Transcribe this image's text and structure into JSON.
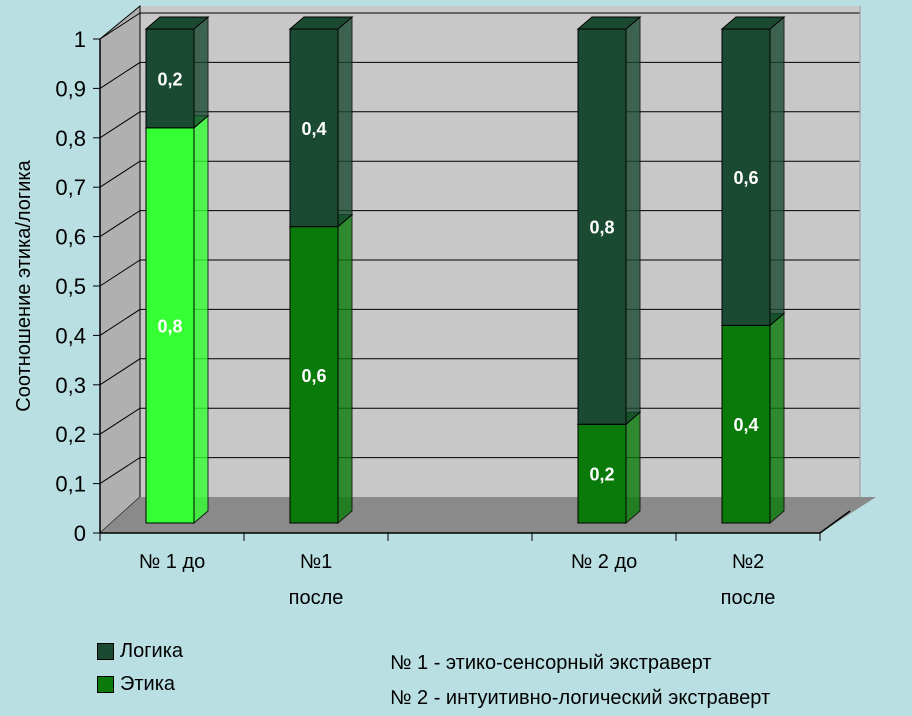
{
  "chart_data": {
    "type": "bar",
    "stacked": true,
    "title": "",
    "xlabel": "",
    "ylabel": "Соотношение этика/логика",
    "ylim": [
      0,
      1
    ],
    "yticks": [
      "0",
      "0,1",
      "0,2",
      "0,3",
      "0,4",
      "0,5",
      "0,6",
      "0,7",
      "0,8",
      "0,9",
      "1"
    ],
    "categories": [
      "№ 1 до",
      "№1 после",
      "",
      "№ 2 до",
      "№2 после"
    ],
    "category_lines": [
      [
        "№ 1 до"
      ],
      [
        "№1",
        "после"
      ],
      [
        ""
      ],
      [
        "№ 2 до"
      ],
      [
        "№2",
        "после"
      ]
    ],
    "series": [
      {
        "name": "Этика",
        "values": [
          0.8,
          0.6,
          null,
          0.2,
          0.4
        ],
        "labels": [
          "0,8",
          "0,6",
          "",
          "0,2",
          "0,4"
        ]
      },
      {
        "name": "Логика",
        "values": [
          0.2,
          0.4,
          null,
          0.8,
          0.6
        ],
        "labels": [
          "0,2",
          "0,4",
          "",
          "0,8",
          "0,6"
        ]
      }
    ],
    "grid": true,
    "legend_position": "bottom-left"
  },
  "colors": {
    "background": "#b9dfe3",
    "plot_wall": "#c8c8c8",
    "floor": "#8a8a8a",
    "logika": "#1b4a33",
    "etika": "#0a7a0a",
    "etika_highlight": "#33ff33"
  },
  "legend": {
    "items": [
      {
        "label": "Логика",
        "color": "#1b4a33"
      },
      {
        "label": "Этика",
        "color": "#0a7a0a"
      }
    ]
  },
  "notes": {
    "line1": "№ 1 - этико-сенсорный экстраверт",
    "line2": "№ 2 - интуитивно-логический экстраверт"
  }
}
